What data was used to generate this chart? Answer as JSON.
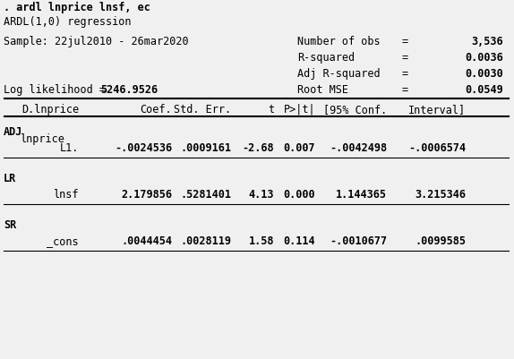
{
  "title_cmd": ". ardl lnprice lnsf, ec",
  "subtitle": "ARDL(1,0) regression",
  "sample": "Sample: 22jul2010 - 26mar2020",
  "loglik_label": "Log likelihood =",
  "loglik_value": "5246.9526",
  "stats": [
    {
      "label": "Number of obs",
      "value": "3,536"
    },
    {
      "label": "R-squared",
      "value": "0.0036"
    },
    {
      "label": "Adj R-squared",
      "value": "0.0030"
    },
    {
      "label": "Root MSE",
      "value": "0.0549"
    }
  ],
  "col_headers": [
    "D.lnprice",
    "Coef.",
    "Std. Err.",
    "t",
    "P>|t|",
    "[95% Conf.",
    "Interval]"
  ],
  "sections": [
    {
      "section_label": "ADJ",
      "rows": [
        {
          "indent1": "lnprice",
          "indent2": "L1.",
          "coef": "-.0024536",
          "se": ".0009161",
          "t": "-2.68",
          "p": "0.007",
          "ci_lo": "-.0042498",
          "ci_hi": "-.0006574"
        }
      ]
    },
    {
      "section_label": "LR",
      "rows": [
        {
          "indent1": "lnsf",
          "indent2": "",
          "coef": "2.179856",
          "se": ".5281401",
          "t": "4.13",
          "p": "0.000",
          "ci_lo": "1.144365",
          "ci_hi": "3.215346"
        }
      ]
    },
    {
      "section_label": "SR",
      "rows": [
        {
          "indent1": "_cons",
          "indent2": "",
          "coef": ".0044454",
          "se": ".0028119",
          "t": "1.58",
          "p": "0.114",
          "ci_lo": "-.0010677",
          "ci_hi": ".0099585"
        }
      ]
    }
  ],
  "bg_color": "#f0f0f0",
  "font_family": "monospace",
  "font_size": 8.5
}
